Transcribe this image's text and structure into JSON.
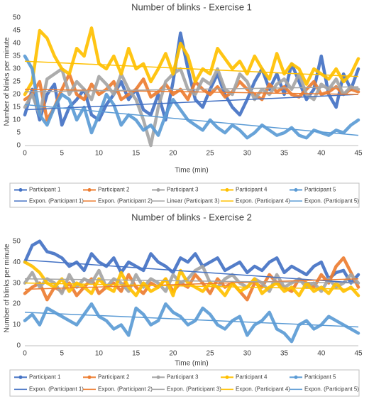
{
  "chart_data": [
    {
      "type": "line",
      "title": "Number of blinks - Exercise 1",
      "x_label": "Time (min)",
      "y_label": "Number of blinks per minute",
      "x": [
        0,
        1,
        2,
        3,
        4,
        5,
        6,
        7,
        8,
        9,
        10,
        11,
        12,
        13,
        14,
        15,
        16,
        17,
        18,
        19,
        20,
        21,
        22,
        23,
        24,
        25,
        26,
        27,
        28,
        29,
        30,
        31,
        32,
        33,
        34,
        35,
        36,
        37,
        38,
        39,
        40,
        41,
        42,
        43,
        44,
        45
      ],
      "xlim": [
        0,
        45
      ],
      "xticks": [
        0,
        5,
        10,
        15,
        20,
        25,
        30,
        35,
        40,
        45
      ],
      "ylim": [
        0,
        50
      ],
      "yticks": [
        0,
        5,
        10,
        15,
        20,
        25,
        30,
        35,
        40,
        45,
        50
      ],
      "grid": false,
      "legend": "bottom",
      "series": [
        {
          "name": "Participant 1",
          "color": "#4472c4",
          "values": [
            12,
            22,
            10,
            20,
            24,
            8,
            15,
            18,
            22,
            12,
            10,
            16,
            20,
            25,
            18,
            22,
            14,
            12,
            20,
            10,
            25,
            44,
            30,
            18,
            15,
            22,
            28,
            20,
            15,
            12,
            18,
            25,
            30,
            22,
            28,
            20,
            32,
            25,
            18,
            22,
            35,
            20,
            15,
            28,
            22,
            30
          ]
        },
        {
          "name": "Participant 2",
          "color": "#ed7d31",
          "values": [
            18,
            20,
            25,
            10,
            15,
            22,
            28,
            20,
            18,
            24,
            20,
            22,
            25,
            18,
            20,
            22,
            26,
            19,
            21,
            24,
            20,
            22,
            18,
            25,
            22,
            20,
            23,
            19,
            21,
            25,
            22,
            20,
            18,
            24,
            21,
            23,
            20,
            19,
            22,
            25,
            20,
            21,
            23,
            20,
            22,
            21
          ]
        },
        {
          "name": "Participant 3",
          "color": "#a5a5a5",
          "values": [
            15,
            20,
            12,
            26,
            28,
            30,
            20,
            25,
            22,
            18,
            27,
            24,
            20,
            28,
            22,
            18,
            10,
            0,
            15,
            25,
            28,
            30,
            22,
            20,
            26,
            24,
            30,
            22,
            20,
            28,
            25,
            18,
            22,
            20,
            24,
            26,
            22,
            28,
            20,
            18,
            24,
            22,
            26,
            20,
            23,
            22
          ]
        },
        {
          "name": "Participant 4",
          "color": "#ffc000",
          "values": [
            20,
            25,
            45,
            42,
            35,
            30,
            28,
            38,
            35,
            46,
            32,
            30,
            35,
            28,
            38,
            30,
            32,
            25,
            30,
            36,
            28,
            40,
            35,
            25,
            30,
            28,
            38,
            34,
            30,
            33,
            28,
            35,
            30,
            26,
            36,
            28,
            32,
            30,
            24,
            30,
            28,
            26,
            30,
            25,
            28,
            34
          ]
        },
        {
          "name": "Participant 5",
          "color": "#5b9bd5",
          "values": [
            35,
            30,
            12,
            8,
            15,
            20,
            18,
            10,
            15,
            5,
            12,
            20,
            16,
            8,
            12,
            10,
            6,
            8,
            4,
            12,
            18,
            14,
            10,
            8,
            6,
            10,
            7,
            5,
            8,
            6,
            3,
            5,
            8,
            6,
            4,
            5,
            7,
            4,
            3,
            6,
            5,
            4,
            6,
            5,
            8,
            10
          ]
        }
      ],
      "trendlines": [
        {
          "name": "Expon. (Participant 1)",
          "color": "#4472c4",
          "x": [
            0,
            45
          ],
          "values": [
            14,
            20
          ]
        },
        {
          "name": "Expon. (Participant 2)",
          "color": "#ed7d31",
          "x": [
            0,
            45
          ],
          "values": [
            22,
            20
          ]
        },
        {
          "name": "Linear (Participant 3)",
          "color": "#a5a5a5",
          "x": [
            0,
            45
          ],
          "values": [
            21,
            23
          ]
        },
        {
          "name": "Expon. (Participant 4)",
          "color": "#ffc000",
          "x": [
            0,
            45
          ],
          "values": [
            33,
            27
          ]
        },
        {
          "name": "Expon. (Participant 5)",
          "color": "#5b9bd5",
          "x": [
            0,
            45
          ],
          "values": [
            16,
            4
          ]
        }
      ]
    },
    {
      "type": "line",
      "title": "Number of blinks - Exercise 2",
      "x_label": "Time (min)",
      "y_label": "Number of blinks per minute",
      "x": [
        0,
        1,
        2,
        3,
        4,
        5,
        6,
        7,
        8,
        9,
        10,
        11,
        12,
        13,
        14,
        15,
        16,
        17,
        18,
        19,
        20,
        21,
        22,
        23,
        24,
        25,
        26,
        27,
        28,
        29,
        30,
        31,
        32,
        33,
        34,
        35,
        36,
        37,
        38,
        39,
        40,
        41,
        42,
        43,
        44,
        45
      ],
      "xlim": [
        0,
        45
      ],
      "xticks": [
        0,
        5,
        10,
        15,
        20,
        25,
        30,
        35,
        40,
        45
      ],
      "ylim": [
        0,
        55
      ],
      "yticks": [
        0,
        10,
        20,
        30,
        40,
        50
      ],
      "grid": false,
      "legend": "bottom",
      "series": [
        {
          "name": "Participant 1",
          "color": "#4472c4",
          "values": [
            40,
            48,
            50,
            45,
            44,
            42,
            38,
            40,
            36,
            44,
            40,
            38,
            42,
            35,
            40,
            38,
            36,
            44,
            40,
            38,
            35,
            42,
            40,
            44,
            38,
            40,
            42,
            36,
            38,
            40,
            35,
            38,
            36,
            40,
            42,
            35,
            38,
            36,
            34,
            38,
            40,
            32,
            35,
            36,
            30,
            34
          ]
        },
        {
          "name": "Participant 2",
          "color": "#ed7d31",
          "values": [
            25,
            28,
            30,
            22,
            28,
            26,
            30,
            24,
            28,
            32,
            25,
            28,
            30,
            26,
            34,
            28,
            25,
            30,
            28,
            32,
            26,
            30,
            28,
            34,
            30,
            25,
            32,
            28,
            30,
            26,
            22,
            30,
            28,
            34,
            30,
            28,
            26,
            32,
            30,
            28,
            34,
            30,
            38,
            42,
            35,
            28
          ]
        },
        {
          "name": "Participant 3",
          "color": "#a5a5a5",
          "values": [
            30,
            35,
            28,
            32,
            30,
            25,
            34,
            28,
            32,
            30,
            36,
            28,
            32,
            30,
            26,
            34,
            28,
            32,
            30,
            26,
            34,
            30,
            32,
            36,
            38,
            30,
            28,
            32,
            34,
            30,
            28,
            32,
            30,
            26,
            34,
            28,
            30,
            32,
            28,
            30,
            26,
            32,
            28,
            30,
            34,
            30
          ]
        },
        {
          "name": "Participant 4",
          "color": "#ffc000",
          "values": [
            40,
            38,
            35,
            30,
            28,
            32,
            26,
            30,
            28,
            25,
            32,
            28,
            26,
            35,
            28,
            24,
            30,
            26,
            28,
            32,
            24,
            36,
            30,
            28,
            26,
            30,
            28,
            24,
            30,
            26,
            28,
            32,
            25,
            28,
            30,
            26,
            28,
            24,
            30,
            26,
            28,
            25,
            30,
            26,
            28,
            24
          ]
        },
        {
          "name": "Participant 5",
          "color": "#5b9bd5",
          "values": [
            12,
            15,
            10,
            18,
            16,
            14,
            12,
            10,
            15,
            20,
            14,
            12,
            8,
            10,
            5,
            18,
            15,
            10,
            12,
            20,
            16,
            14,
            10,
            12,
            18,
            15,
            10,
            8,
            12,
            14,
            5,
            10,
            12,
            16,
            8,
            6,
            2,
            10,
            12,
            8,
            10,
            14,
            12,
            10,
            8,
            6
          ]
        }
      ],
      "trendlines": [
        {
          "name": "Expon. (Participant 1)",
          "color": "#4472c4",
          "x": [
            0,
            45
          ],
          "values": [
            41,
            30
          ]
        },
        {
          "name": "Expon. (Participant 2)",
          "color": "#ed7d31",
          "x": [
            0,
            45
          ],
          "values": [
            27,
            32
          ]
        },
        {
          "name": "Expon. (Participant 3)",
          "color": "#a5a5a5",
          "x": [
            0,
            45
          ],
          "values": [
            32,
            30
          ]
        },
        {
          "name": "Expon. (Participant 4)",
          "color": "#ffc000",
          "x": [
            0,
            45
          ],
          "values": [
            30,
            27
          ]
        },
        {
          "name": "Expon. (Participant 5)",
          "color": "#5b9bd5",
          "x": [
            0,
            45
          ],
          "values": [
            16,
            9
          ]
        }
      ]
    }
  ]
}
